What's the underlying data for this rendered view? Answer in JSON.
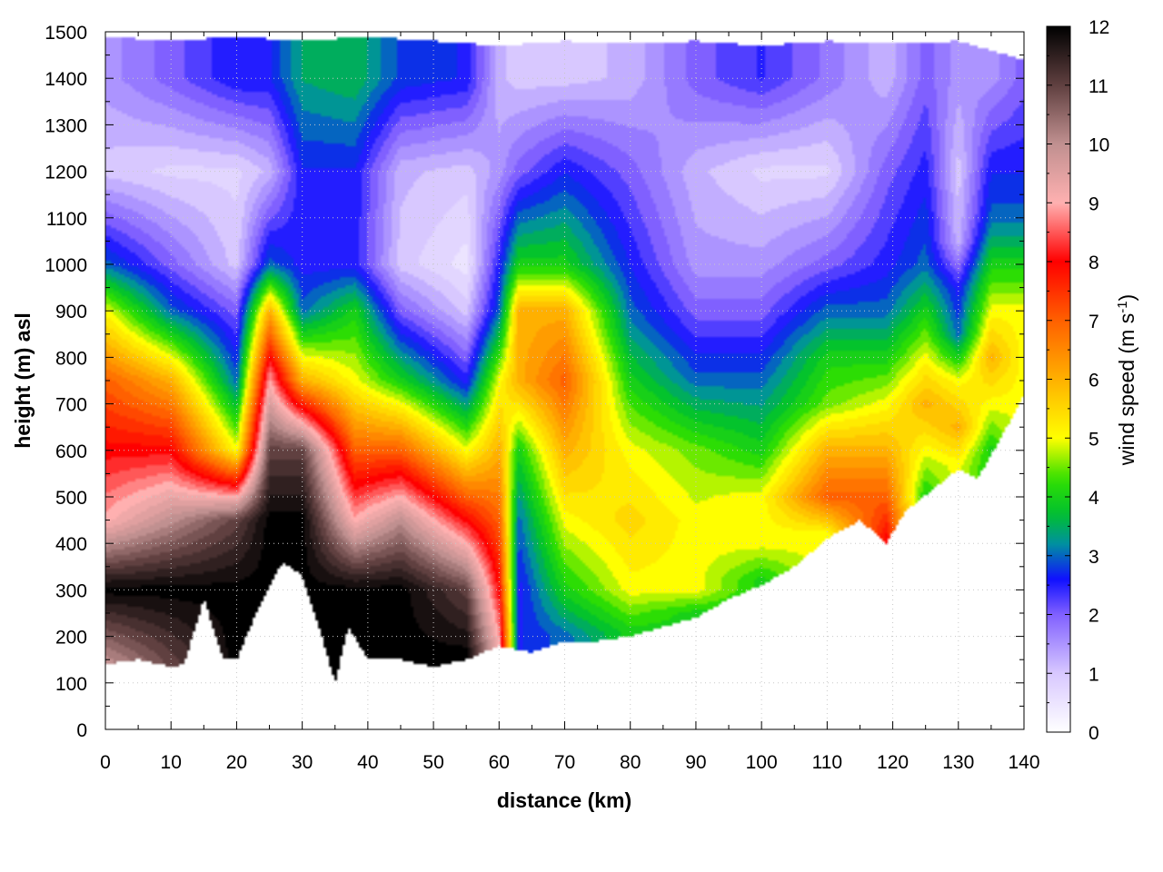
{
  "chart_data": {
    "type": "heatmap",
    "title": "",
    "xlabel": "distance (km)",
    "ylabel": "height (m) asl",
    "xlim": [
      0,
      140
    ],
    "ylim": [
      0,
      1500
    ],
    "x_ticks": [
      "0",
      "10",
      "20",
      "30",
      "40",
      "50",
      "60",
      "70",
      "80",
      "90",
      "100",
      "110",
      "120",
      "130",
      "140"
    ],
    "y_ticks": [
      "0",
      "100",
      "200",
      "300",
      "400",
      "500",
      "600",
      "700",
      "800",
      "900",
      "1000",
      "1100",
      "1200",
      "1300",
      "1400",
      "1500"
    ],
    "colorbar": {
      "label_main": "wind speed (m s",
      "label_sup": "-1",
      "label_end": ")",
      "range": [
        0,
        12
      ],
      "ticks": [
        "0",
        "1",
        "2",
        "3",
        "4",
        "5",
        "6",
        "7",
        "8",
        "9",
        "10",
        "11",
        "12"
      ],
      "stops": [
        {
          "v": 0,
          "c": "#ffffff"
        },
        {
          "v": 1,
          "c": "#d8c8ff"
        },
        {
          "v": 2,
          "c": "#8060ff"
        },
        {
          "v": 2.6,
          "c": "#1010ff"
        },
        {
          "v": 3.2,
          "c": "#0090a0"
        },
        {
          "v": 3.7,
          "c": "#00c030"
        },
        {
          "v": 4.3,
          "c": "#30e000"
        },
        {
          "v": 5,
          "c": "#ffff00"
        },
        {
          "v": 6,
          "c": "#ffb000"
        },
        {
          "v": 7,
          "c": "#ff6000"
        },
        {
          "v": 8,
          "c": "#ff0000"
        },
        {
          "v": 9,
          "c": "#ffb0b0"
        },
        {
          "v": 10,
          "c": "#c09090"
        },
        {
          "v": 11,
          "c": "#604040"
        },
        {
          "v": 12,
          "c": "#000000"
        }
      ]
    },
    "terrain_height": [
      [
        0,
        140
      ],
      [
        5,
        150
      ],
      [
        10,
        135
      ],
      [
        12,
        140
      ],
      [
        15,
        280
      ],
      [
        18,
        150
      ],
      [
        20,
        150
      ],
      [
        23,
        250
      ],
      [
        27,
        360
      ],
      [
        30,
        330
      ],
      [
        33,
        200
      ],
      [
        35,
        100
      ],
      [
        37,
        220
      ],
      [
        40,
        150
      ],
      [
        45,
        150
      ],
      [
        50,
        135
      ],
      [
        55,
        150
      ],
      [
        60,
        180
      ],
      [
        65,
        165
      ],
      [
        70,
        190
      ],
      [
        75,
        190
      ],
      [
        80,
        200
      ],
      [
        90,
        240
      ],
      [
        95,
        280
      ],
      [
        100,
        310
      ],
      [
        105,
        350
      ],
      [
        110,
        410
      ],
      [
        115,
        450
      ],
      [
        119,
        400
      ],
      [
        122,
        470
      ],
      [
        130,
        560
      ],
      [
        133,
        540
      ],
      [
        137,
        640
      ],
      [
        140,
        720
      ]
    ],
    "upper_limit_height": [
      [
        0,
        1490
      ],
      [
        10,
        1480
      ],
      [
        20,
        1490
      ],
      [
        30,
        1480
      ],
      [
        40,
        1490
      ],
      [
        50,
        1480
      ],
      [
        60,
        1470
      ],
      [
        70,
        1480
      ],
      [
        80,
        1475
      ],
      [
        90,
        1480
      ],
      [
        100,
        1470
      ],
      [
        110,
        1480
      ],
      [
        120,
        1475
      ],
      [
        130,
        1480
      ],
      [
        140,
        1440
      ]
    ],
    "wind_profiles": [
      {
        "x": 0,
        "h": [
          150,
          300,
          450,
          600,
          750,
          900,
          1000,
          1200,
          1400
        ],
        "v": [
          10,
          12,
          9,
          8,
          7,
          5,
          3,
          1,
          1.5
        ]
      },
      {
        "x": 10,
        "h": [
          150,
          300,
          450,
          600,
          750,
          900,
          1000,
          1200,
          1400
        ],
        "v": [
          11,
          12,
          10,
          8,
          6,
          3,
          2,
          0.8,
          2
        ]
      },
      {
        "x": 20,
        "h": [
          170,
          300,
          450,
          600,
          750,
          900,
          1000,
          1200,
          1400
        ],
        "v": [
          12,
          12,
          11,
          5,
          3,
          2,
          1,
          0.8,
          2.6
        ]
      },
      {
        "x": 25,
        "h": [
          300,
          450,
          600,
          750,
          900,
          1000,
          1200,
          1400
        ],
        "v": [
          12,
          12,
          11,
          9,
          6,
          3,
          1.2,
          2.6
        ]
      },
      {
        "x": 30,
        "h": [
          350,
          450,
          600,
          750,
          900,
          1000,
          1200,
          1400
        ],
        "v": [
          12,
          12,
          11,
          6,
          3,
          2.5,
          2.6,
          3.4
        ]
      },
      {
        "x": 38,
        "h": [
          230,
          300,
          450,
          600,
          750,
          900,
          1000,
          1200,
          1400
        ],
        "v": [
          12,
          12,
          9,
          7,
          5,
          4,
          2.5,
          2.6,
          3.6
        ]
      },
      {
        "x": 45,
        "h": [
          160,
          300,
          450,
          600,
          750,
          900,
          1000,
          1200,
          1400
        ],
        "v": [
          12,
          12,
          10,
          7,
          4,
          2,
          1,
          1.2,
          2.8
        ]
      },
      {
        "x": 55,
        "h": [
          160,
          300,
          450,
          600,
          750,
          900,
          1000,
          1200,
          1400
        ],
        "v": [
          12,
          11,
          8,
          5,
          2.5,
          1,
          0.5,
          1,
          2.6
        ]
      },
      {
        "x": 60,
        "h": [
          190,
          300,
          450,
          600,
          750,
          900,
          1000,
          1200,
          1400
        ],
        "v": [
          9,
          8,
          7,
          6,
          5,
          3,
          2.5,
          1.5,
          1.2
        ]
      },
      {
        "x": 63,
        "h": [
          180,
          300,
          450,
          600,
          750,
          900,
          1000,
          1200,
          1400
        ],
        "v": [
          2.6,
          2.5,
          3,
          4,
          6,
          6,
          4,
          2,
          1
        ]
      },
      {
        "x": 70,
        "h": [
          200,
          300,
          450,
          600,
          750,
          900,
          1000,
          1200,
          1400
        ],
        "v": [
          3,
          4,
          5,
          6,
          7,
          6,
          4,
          2.6,
          1
        ]
      },
      {
        "x": 80,
        "h": [
          210,
          300,
          450,
          600,
          750,
          900,
          1000,
          1200,
          1400
        ],
        "v": [
          4,
          5,
          5.5,
          5,
          4,
          3,
          2.6,
          2,
          1.2
        ]
      },
      {
        "x": 90,
        "h": [
          250,
          300,
          450,
          600,
          750,
          900,
          1000,
          1200,
          1400
        ],
        "v": [
          4,
          5,
          5,
          4.5,
          3,
          2,
          1.5,
          1.2,
          2
        ]
      },
      {
        "x": 100,
        "h": [
          320,
          400,
          500,
          600,
          750,
          900,
          1000,
          1200,
          1400
        ],
        "v": [
          4,
          5,
          5,
          4,
          3,
          2,
          1.5,
          0.8,
          2.4
        ]
      },
      {
        "x": 110,
        "h": [
          420,
          500,
          600,
          700,
          800,
          900,
          1000,
          1200,
          1400
        ],
        "v": [
          5,
          7,
          6,
          4.5,
          4,
          3,
          2,
          0.8,
          1.8
        ]
      },
      {
        "x": 119,
        "h": [
          410,
          500,
          600,
          700,
          800,
          900,
          1000,
          1200,
          1400
        ],
        "v": [
          8,
          7,
          6,
          5,
          4,
          3,
          2.5,
          2,
          1.2
        ]
      },
      {
        "x": 125,
        "h": [
          500,
          600,
          700,
          800,
          900,
          1000,
          1200,
          1400
        ],
        "v": [
          4,
          5,
          6,
          5,
          4,
          3,
          2.5,
          2
        ]
      },
      {
        "x": 130,
        "h": [
          570,
          650,
          750,
          850,
          950,
          1050,
          1200,
          1400
        ],
        "v": [
          5,
          6,
          5,
          3,
          2.5,
          1.2,
          1,
          1.5
        ]
      },
      {
        "x": 135,
        "h": [
          600,
          700,
          800,
          900,
          1000,
          1100,
          1200,
          1400
        ],
        "v": [
          4,
          5,
          6,
          5,
          4,
          3,
          2.6,
          1.5
        ]
      },
      {
        "x": 140,
        "h": [
          720,
          800,
          900,
          1000,
          1100,
          1200,
          1400
        ],
        "v": [
          5,
          5,
          5,
          4,
          3,
          2.6,
          2
        ]
      }
    ]
  }
}
